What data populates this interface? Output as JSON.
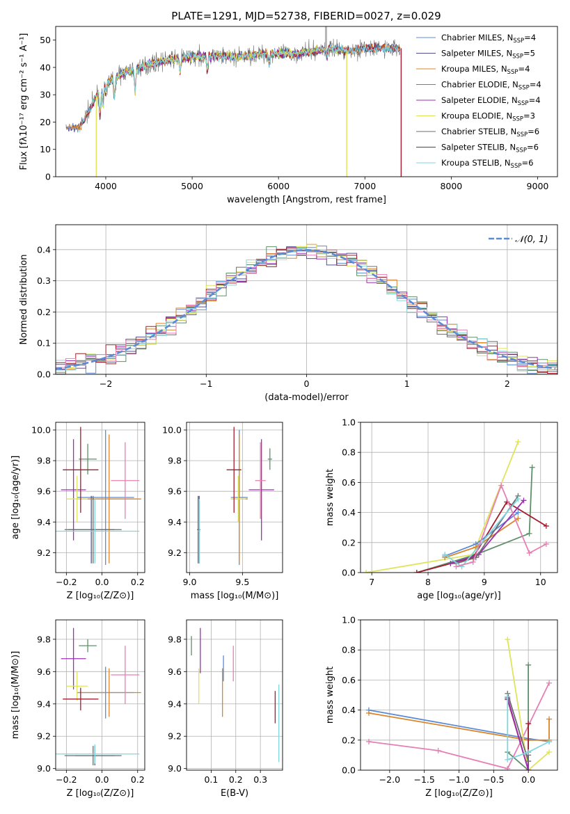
{
  "figure_title": "PLATE=1291, MJD=52738, FIBERID=0027, z=0.029",
  "colors": {
    "Chabrier MILES": "#5b8bd6",
    "Salpeter MILES": "#4f4f8f",
    "Kroupa MILES": "#d9852b",
    "Chabrier ELODIE": "#5f8f68",
    "Salpeter ELODIE": "#9b2fb3",
    "Kroupa ELODIE": "#dfe45a",
    "Chabrier STELIB": "#6c6c6c",
    "Salpeter STELIB": "#a51d2d",
    "Kroupa STELIB": "#7fd6df",
    "pink": "#e67fb3",
    "normal": "#5b8bd6"
  },
  "chart_data": [
    {
      "id": "spectrum",
      "type": "line",
      "title": "PLATE=1291, MJD=52738, FIBERID=0027, z=0.029",
      "xlabel": "wavelength [Angstrom, rest frame]",
      "ylabel": "Flux [fλ10⁻¹⁷ erg cm⁻² s⁻¹ A⁻¹]",
      "xlim": [
        3420,
        9230
      ],
      "ylim": [
        0,
        55
      ],
      "xticks": [
        4000,
        5000,
        6000,
        7000,
        8000,
        9000
      ],
      "yticks": [
        0,
        10,
        20,
        30,
        40,
        50
      ],
      "legend_position": "top-right",
      "legend": [
        {
          "name": "Chabrier MILES",
          "label": "Chabrier MILES, N",
          "sub": "SSP",
          "n": "=4"
        },
        {
          "name": "Salpeter MILES",
          "label": "Salpeter MILES, N",
          "sub": "SSP",
          "n": "=5"
        },
        {
          "name": "Kroupa MILES",
          "label": "Kroupa MILES, N",
          "sub": "SSP",
          "n": "=4"
        },
        {
          "name": "Chabrier ELODIE",
          "label": "Chabrier ELODIE, N",
          "sub": "SSP",
          "n": "=4"
        },
        {
          "name": "Salpeter ELODIE",
          "label": "Salpeter ELODIE, N",
          "sub": "SSP",
          "n": "=4"
        },
        {
          "name": "Kroupa ELODIE",
          "label": "Kroupa ELODIE, N",
          "sub": "SSP",
          "n": "=3"
        },
        {
          "name": "Chabrier STELIB",
          "label": "Chabrier STELIB, N",
          "sub": "SSP",
          "n": "=6"
        },
        {
          "name": "Salpeter STELIB",
          "label": "Salpeter STELIB, N",
          "sub": "SSP",
          "n": "=6"
        },
        {
          "name": "Kroupa STELIB",
          "label": "Kroupa STELIB, N",
          "sub": "SSP",
          "n": "=6"
        }
      ],
      "continuum": {
        "x": [
          3700,
          3800,
          3900,
          4000,
          4200,
          4400,
          4600,
          4800,
          5000,
          5200,
          5400,
          5600,
          5800,
          6000,
          6200,
          6400,
          6600,
          6800,
          7000,
          7200,
          7400
        ],
        "y": [
          18,
          24,
          30,
          34,
          38,
          40,
          42,
          43,
          44,
          44,
          44,
          44,
          45,
          45,
          45,
          46,
          47,
          46,
          47,
          47,
          47
        ]
      },
      "series_ranges": [
        {
          "name": "Chabrier MILES",
          "xmin": 3540,
          "xmax": 7410
        },
        {
          "name": "Salpeter MILES",
          "xmin": 3540,
          "xmax": 7410
        },
        {
          "name": "Kroupa MILES",
          "xmin": 3540,
          "xmax": 7410
        },
        {
          "name": "Chabrier ELODIE",
          "xmin": 3900,
          "xmax": 6790
        },
        {
          "name": "Salpeter ELODIE",
          "xmin": 3900,
          "xmax": 6790
        },
        {
          "name": "Kroupa ELODIE",
          "xmin": 3900,
          "xmax": 6790
        },
        {
          "name": "Chabrier STELIB",
          "xmin": 3700,
          "xmax": 7410
        },
        {
          "name": "Salpeter STELIB",
          "xmin": 3700,
          "xmax": 7410
        },
        {
          "name": "Kroupa STELIB",
          "xmin": 3700,
          "xmax": 7410
        }
      ],
      "drops": [
        {
          "x": 3890,
          "name": "Kroupa ELODIE"
        },
        {
          "x": 6790,
          "name": "Kroupa ELODIE"
        },
        {
          "x": 7420,
          "name": "Salpeter STELIB"
        }
      ],
      "gray_spike_x": 6550
    },
    {
      "id": "residuals",
      "type": "step",
      "xlabel": "(data-model)/error",
      "ylabel": "Normed distribution",
      "xlim": [
        -2.5,
        2.5
      ],
      "ylim": [
        0,
        0.48
      ],
      "xticks": [
        -2,
        -1,
        0,
        1,
        2
      ],
      "yticks": [
        0.0,
        0.1,
        0.2,
        0.3,
        0.4
      ],
      "grid": true,
      "legend_position": "top-right",
      "normal_label": "𝒩(0, 1)"
    },
    {
      "id": "age_vs_Z",
      "type": "errorbar",
      "xlabel": "Z [log₁₀(Z/Z⊙)]",
      "ylabel": "age  [log₁₀(age/yr)]",
      "xlim": [
        -0.26,
        0.24
      ],
      "ylim": [
        9.07,
        10.05
      ],
      "xticks": [
        -0.2,
        0.0,
        0.2
      ],
      "yticks": [
        9.2,
        9.4,
        9.6,
        9.8,
        10.0
      ],
      "grid": true,
      "points": [
        {
          "name": "Chabrier MILES",
          "x": 0.02,
          "xerr": 0.16,
          "y": 9.56,
          "yerr": 0.44
        },
        {
          "name": "Salpeter MILES",
          "x": -0.06,
          "xerr": 0.13,
          "y": 9.35,
          "yerr": 0.22
        },
        {
          "name": "Kroupa MILES",
          "x": 0.04,
          "xerr": 0.18,
          "y": 9.55,
          "yerr": 0.42
        },
        {
          "name": "Chabrier ELODIE",
          "x": -0.08,
          "xerr": 0.05,
          "y": 9.81,
          "yerr": 0.1
        },
        {
          "name": "Salpeter ELODIE",
          "x": -0.16,
          "xerr": 0.07,
          "y": 9.61,
          "yerr": 0.33
        },
        {
          "name": "Kroupa ELODIE",
          "x": -0.14,
          "xerr": 0.06,
          "y": 9.55,
          "yerr": 0.15
        },
        {
          "name": "Chabrier STELIB",
          "x": -0.05,
          "xerr": 0.16,
          "y": 9.35,
          "yerr": 0.22
        },
        {
          "name": "Salpeter STELIB",
          "x": -0.12,
          "xerr": 0.1,
          "y": 9.74,
          "yerr": 0.28
        },
        {
          "name": "Kroupa STELIB",
          "x": -0.04,
          "xerr": 0.25,
          "y": 9.34,
          "yerr": 0.21
        },
        {
          "name": "pink",
          "x": 0.13,
          "xerr": 0.08,
          "y": 9.67,
          "yerr": 0.25
        }
      ]
    },
    {
      "id": "age_vs_mass",
      "type": "errorbar",
      "xlabel": "mass [log₁₀(M/M⊙)]",
      "xlim": [
        8.97,
        9.88
      ],
      "ylim": [
        9.07,
        10.05
      ],
      "xticks": [
        9.0,
        9.5
      ],
      "yticks": [
        9.2,
        9.4,
        9.6,
        9.8,
        10.0
      ],
      "grid": true,
      "points": [
        {
          "name": "Chabrier MILES",
          "x": 9.47,
          "xerr": 0.08,
          "y": 9.56,
          "yerr": 0.44
        },
        {
          "name": "Salpeter MILES",
          "x": 9.09,
          "xerr": 0.01,
          "y": 9.35,
          "yerr": 0.22
        },
        {
          "name": "Kroupa MILES",
          "x": 9.47,
          "xerr": 0.08,
          "y": 9.55,
          "yerr": 0.42
        },
        {
          "name": "Chabrier ELODIE",
          "x": 9.76,
          "xerr": 0.02,
          "y": 9.81,
          "yerr": 0.07
        },
        {
          "name": "Salpeter ELODIE",
          "x": 9.68,
          "xerr": 0.12,
          "y": 9.61,
          "yerr": 0.33
        },
        {
          "name": "Kroupa ELODIE",
          "x": 9.46,
          "xerr": 0.07,
          "y": 9.55,
          "yerr": 0.15
        },
        {
          "name": "Chabrier STELIB",
          "x": 9.08,
          "xerr": 0.01,
          "y": 9.35,
          "yerr": 0.22
        },
        {
          "name": "Salpeter STELIB",
          "x": 9.42,
          "xerr": 0.07,
          "y": 9.74,
          "yerr": 0.28
        },
        {
          "name": "Kroupa STELIB",
          "x": 9.09,
          "xerr": 0.01,
          "y": 9.34,
          "yerr": 0.21
        },
        {
          "name": "pink",
          "x": 9.67,
          "xerr": 0.05,
          "y": 9.67,
          "yerr": 0.25
        }
      ]
    },
    {
      "id": "weight_vs_age",
      "type": "line",
      "xlabel": "age  [log₁₀(age/yr)]",
      "ylabel": "mass weight",
      "xlim": [
        6.8,
        10.3
      ],
      "ylim": [
        0,
        1.0
      ],
      "xticks": [
        7,
        8,
        9,
        10
      ],
      "yticks": [
        0.0,
        0.2,
        0.4,
        0.6,
        0.8,
        1.0
      ],
      "grid": true,
      "series": [
        {
          "name": "Kroupa ELODIE",
          "x": [
            6.9,
            8.8,
            9.6
          ],
          "y": [
            0.0,
            0.12,
            0.87
          ]
        },
        {
          "name": "Chabrier ELODIE",
          "x": [
            7.8,
            8.85,
            9.8,
            9.85
          ],
          "y": [
            0.0,
            0.12,
            0.26,
            0.7
          ]
        },
        {
          "name": "Salpeter STELIB",
          "x": [
            7.8,
            8.8,
            9.4,
            10.1
          ],
          "y": [
            0.0,
            0.1,
            0.47,
            0.31
          ]
        },
        {
          "name": "Chabrier MILES",
          "x": [
            8.3,
            8.85,
            9.6
          ],
          "y": [
            0.11,
            0.19,
            0.4
          ]
        },
        {
          "name": "Kroupa MILES",
          "x": [
            8.3,
            8.85,
            9.6
          ],
          "y": [
            0.1,
            0.17,
            0.36
          ]
        },
        {
          "name": "Salpeter ELODIE",
          "x": [
            8.4,
            8.9,
            9.7
          ],
          "y": [
            0.06,
            0.12,
            0.48
          ]
        },
        {
          "name": "Chabrier STELIB",
          "x": [
            8.5,
            8.85,
            9.6
          ],
          "y": [
            0.06,
            0.1,
            0.51
          ]
        },
        {
          "name": "Kroupa STELIB",
          "x": [
            8.3,
            8.6,
            9.6
          ],
          "y": [
            0.12,
            0.04,
            0.49
          ]
        },
        {
          "name": "pink",
          "x": [
            8.5,
            8.8,
            9.3,
            9.8,
            10.1
          ],
          "y": [
            0.04,
            0.07,
            0.58,
            0.13,
            0.19
          ]
        }
      ]
    },
    {
      "id": "mass_vs_Z",
      "type": "errorbar",
      "xlabel": "Z [log₁₀(Z/Z⊙)]",
      "ylabel": "mass [log₁₀(M/M⊙)]",
      "xlim": [
        -0.26,
        0.24
      ],
      "ylim": [
        8.99,
        9.92
      ],
      "xticks": [
        -0.2,
        0.0,
        0.2
      ],
      "yticks": [
        9.0,
        9.2,
        9.4,
        9.6,
        9.8
      ],
      "grid": true,
      "points": [
        {
          "name": "Chabrier MILES",
          "x": 0.02,
          "xerr": 0.16,
          "y": 9.47,
          "yerr": 0.16
        },
        {
          "name": "Salpeter MILES",
          "x": -0.04,
          "xerr": 0.11,
          "y": 9.08,
          "yerr": 0.06
        },
        {
          "name": "Kroupa MILES",
          "x": 0.04,
          "xerr": 0.18,
          "y": 9.47,
          "yerr": 0.15
        },
        {
          "name": "Chabrier ELODIE",
          "x": -0.08,
          "xerr": 0.05,
          "y": 9.76,
          "yerr": 0.04
        },
        {
          "name": "Salpeter ELODIE",
          "x": -0.16,
          "xerr": 0.07,
          "y": 9.68,
          "yerr": 0.19
        },
        {
          "name": "Kroupa ELODIE",
          "x": -0.14,
          "xerr": 0.06,
          "y": 9.51,
          "yerr": 0.09
        },
        {
          "name": "Chabrier STELIB",
          "x": -0.05,
          "xerr": 0.16,
          "y": 9.08,
          "yerr": 0.06
        },
        {
          "name": "Salpeter STELIB",
          "x": -0.12,
          "xerr": 0.1,
          "y": 9.43,
          "yerr": 0.07
        },
        {
          "name": "Kroupa STELIB",
          "x": -0.04,
          "xerr": 0.25,
          "y": 9.09,
          "yerr": 0.06
        },
        {
          "name": "pink",
          "x": 0.13,
          "xerr": 0.08,
          "y": 9.58,
          "yerr": 0.18
        }
      ]
    },
    {
      "id": "mass_vs_ebv",
      "type": "errorbar",
      "xlabel": "E(B-V)",
      "xlim": [
        0.0,
        0.39
      ],
      "ylim": [
        8.99,
        9.92
      ],
      "xticks": [
        0.1,
        0.2,
        0.3
      ],
      "yticks": [
        9.0,
        9.2,
        9.4,
        9.6,
        9.8
      ],
      "grid": true,
      "points": [
        {
          "name": "Chabrier MILES",
          "x": 0.15,
          "xerr": 0.0,
          "y": 9.62,
          "yerr": 0.08
        },
        {
          "name": "Kroupa MILES",
          "x": 0.146,
          "xerr": 0.0,
          "y": 9.47,
          "yerr": 0.15
        },
        {
          "name": "Chabrier ELODIE",
          "x": 0.02,
          "xerr": 0.0,
          "y": 9.76,
          "yerr": 0.06
        },
        {
          "name": "Salpeter ELODIE",
          "x": 0.056,
          "xerr": 0.0,
          "y": 9.73,
          "yerr": 0.14
        },
        {
          "name": "Kroupa ELODIE",
          "x": 0.05,
          "xerr": 0.0,
          "y": 9.51,
          "yerr": 0.11
        },
        {
          "name": "Salpeter STELIB",
          "x": 0.36,
          "xerr": 0.0,
          "y": 9.38,
          "yerr": 0.1
        },
        {
          "name": "Kroupa STELIB",
          "x": 0.375,
          "xerr": 0.0,
          "y": 9.28,
          "yerr": 0.24
        },
        {
          "name": "pink",
          "x": 0.19,
          "xerr": 0.0,
          "y": 9.65,
          "yerr": 0.11
        }
      ]
    },
    {
      "id": "weight_vs_Z",
      "type": "line",
      "xlabel": "Z [log₁₀(Z/Z⊙)]",
      "ylabel": "mass weight",
      "xlim": [
        -2.42,
        0.42
      ],
      "ylim": [
        0,
        1.0
      ],
      "xticks": [
        -2.0,
        -1.5,
        -1.0,
        -0.5,
        0.0
      ],
      "yticks": [
        0.0,
        0.2,
        0.4,
        0.6,
        0.8,
        1.0
      ],
      "grid": true,
      "series": [
        {
          "name": "Chabrier MILES",
          "x": [
            -2.3,
            0.0,
            0.3
          ],
          "y": [
            0.4,
            0.21,
            0.19
          ]
        },
        {
          "name": "Kroupa MILES",
          "x": [
            -2.3,
            0.0,
            0.3,
            0.3
          ],
          "y": [
            0.38,
            0.2,
            0.2,
            0.34
          ]
        },
        {
          "name": "pink",
          "x": [
            -2.3,
            -1.3,
            -0.3,
            0.3
          ],
          "y": [
            0.19,
            0.13,
            0.01,
            0.58
          ]
        },
        {
          "name": "Kroupa ELODIE",
          "x": [
            -0.3,
            0.0,
            0.3
          ],
          "y": [
            0.87,
            0.0,
            0.12
          ]
        },
        {
          "name": "Chabrier ELODIE",
          "x": [
            -0.3,
            0.0,
            0.0
          ],
          "y": [
            0.12,
            0.0,
            0.7
          ]
        },
        {
          "name": "Salpeter STELIB",
          "x": [
            -0.3,
            0.0,
            0.0
          ],
          "y": [
            0.47,
            0.0,
            0.31
          ]
        },
        {
          "name": "Salpeter ELODIE",
          "x": [
            -0.3,
            0.0,
            0.0
          ],
          "y": [
            0.48,
            0.0,
            0.12
          ]
        },
        {
          "name": "Chabrier STELIB",
          "x": [
            -0.3,
            0.0,
            0.0
          ],
          "y": [
            0.51,
            0.06,
            0.1
          ]
        },
        {
          "name": "Kroupa STELIB",
          "x": [
            -0.3,
            -0.3,
            0.0,
            0.3
          ],
          "y": [
            0.49,
            0.07,
            0.12,
            0.19
          ]
        }
      ]
    }
  ]
}
